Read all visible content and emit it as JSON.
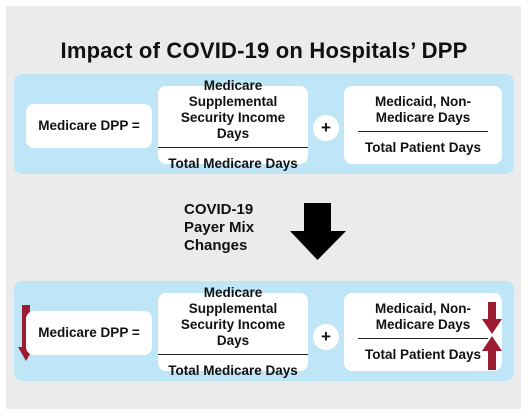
{
  "title": "Impact of COVID-19 on Hospitals’ DPP",
  "before": {
    "label": "Medicare DPP =",
    "term1": {
      "numerator": "Medicare Supplemental Security Income Days",
      "denominator": "Total Medicare Days"
    },
    "operator": "+",
    "term2": {
      "numerator": "Medicaid, Non-Medicare Days",
      "denominator": "Total Patient Days"
    }
  },
  "change_label": [
    "COVID-19",
    "Payer Mix",
    "Changes"
  ],
  "after": {
    "label": "Medicare DPP =",
    "label_direction": "down",
    "term1": {
      "numerator": "Medicare Supplemental Security Income Days",
      "denominator": "Total Medicare Days"
    },
    "operator": "+",
    "term2": {
      "numerator": "Medicaid, Non-Medicare Days",
      "numerator_direction": "down",
      "denominator": "Total Patient Days",
      "denominator_direction": "up"
    }
  },
  "colors": {
    "band": "#bfe6f7",
    "arrow": "#9b1b30",
    "panel": "#ebebeb",
    "flow_arrow": "#000000"
  },
  "icons": [
    "down-arrow-icon",
    "up-arrow-icon",
    "big-down-arrow-icon"
  ]
}
